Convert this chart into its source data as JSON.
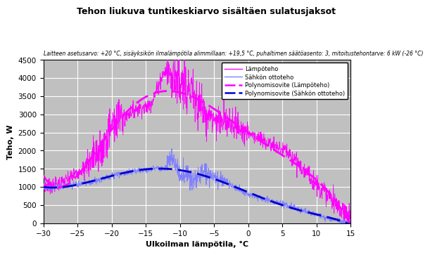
{
  "title": "Tehon liukuva tuntikeskiarvo sisältäen sulatusjaksot",
  "subtitle": "Laitteen asetusarvo: +20 °C, sisäyksikön ilmalämpötila alimmillaan: +19,5 °C, puhaltimen säätöasento: 3, mitoitustehontarve: 6 kW (-26 °C)",
  "xlabel": "Ulkoilman lämpötila, °C",
  "ylabel": "Teho, W",
  "xlim": [
    -30,
    15
  ],
  "ylim": [
    0,
    4500
  ],
  "xticks": [
    -30,
    -25,
    -20,
    -15,
    -10,
    -5,
    0,
    5,
    10,
    15
  ],
  "yticks": [
    0,
    500,
    1000,
    1500,
    2000,
    2500,
    3000,
    3500,
    4000,
    4500
  ],
  "bg_color": "#c0c0c0",
  "line_color_lampo": "#ff00ff",
  "line_color_sahko": "#8080ff",
  "poly_color_lampo": "#ff00ff",
  "poly_color_sahko": "#0000cc",
  "legend_labels": [
    "Lämpöteho",
    "Sähkön ottoteho",
    "Polynomisovite (Lämpöteho)",
    "Polynomisovite (Sähkön ottoteho)"
  ]
}
